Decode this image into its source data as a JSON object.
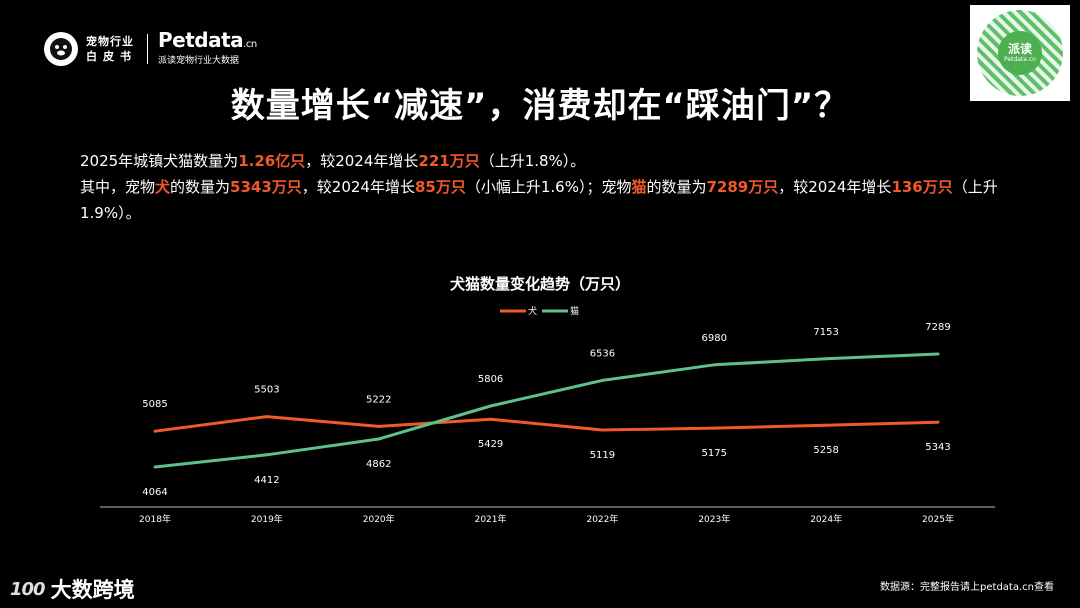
{
  "header": {
    "logo_line1": "宠物行业",
    "logo_line2": "白皮书",
    "brand": "Petdata",
    "brand_suffix": ".cn",
    "brand_sub": "派读宠物行业大数据",
    "qr_label_top": "派读",
    "qr_label_bottom": "Petdata.cn"
  },
  "title": "数量增长“减速”，消费却在“踩油门”？",
  "description": {
    "line1": [
      {
        "t": "2025年城镇犬猫数量为",
        "h": false
      },
      {
        "t": "1.26亿只",
        "h": true
      },
      {
        "t": "，较2024年增长",
        "h": false
      },
      {
        "t": "221万只",
        "h": true
      },
      {
        "t": "（上升1.8%）。",
        "h": false
      }
    ],
    "line2": [
      {
        "t": "其中，宠物",
        "h": false
      },
      {
        "t": "犬",
        "h": true
      },
      {
        "t": "的数量为",
        "h": false
      },
      {
        "t": "5343万只",
        "h": true
      },
      {
        "t": "，较2024年增长",
        "h": false
      },
      {
        "t": "85万只",
        "h": true
      },
      {
        "t": "（小幅上升1.6%）；宠物",
        "h": false
      },
      {
        "t": "猫",
        "h": true
      },
      {
        "t": "的数量为",
        "h": false
      },
      {
        "t": "7289万只",
        "h": true
      },
      {
        "t": "，较2024年增长",
        "h": false
      },
      {
        "t": "136万只",
        "h": true
      },
      {
        "t": "（上升1.9%）。",
        "h": false
      }
    ]
  },
  "colors": {
    "dog": "#f05a28",
    "cat": "#5fc08c",
    "highlight": "#f05a28"
  },
  "chart_data": {
    "type": "line",
    "title": "犬猫数量变化趋势（万只）",
    "categories": [
      "2018年",
      "2019年",
      "2020年",
      "2021年",
      "2022年",
      "2023年",
      "2024年",
      "2025年"
    ],
    "series": [
      {
        "name": "犬",
        "values": [
          5085,
          5503,
          5222,
          5429,
          5119,
          5175,
          5258,
          5343
        ]
      },
      {
        "name": "猫",
        "values": [
          4064,
          4412,
          4862,
          5806,
          6536,
          6980,
          7153,
          7289
        ]
      }
    ],
    "legend": "top-center",
    "grid": false,
    "data_labels": true
  },
  "footer": {
    "logo_mark": "100",
    "logo_text": "大数跨境",
    "source": "数据源：完整报告请上petdata.cn查看"
  }
}
